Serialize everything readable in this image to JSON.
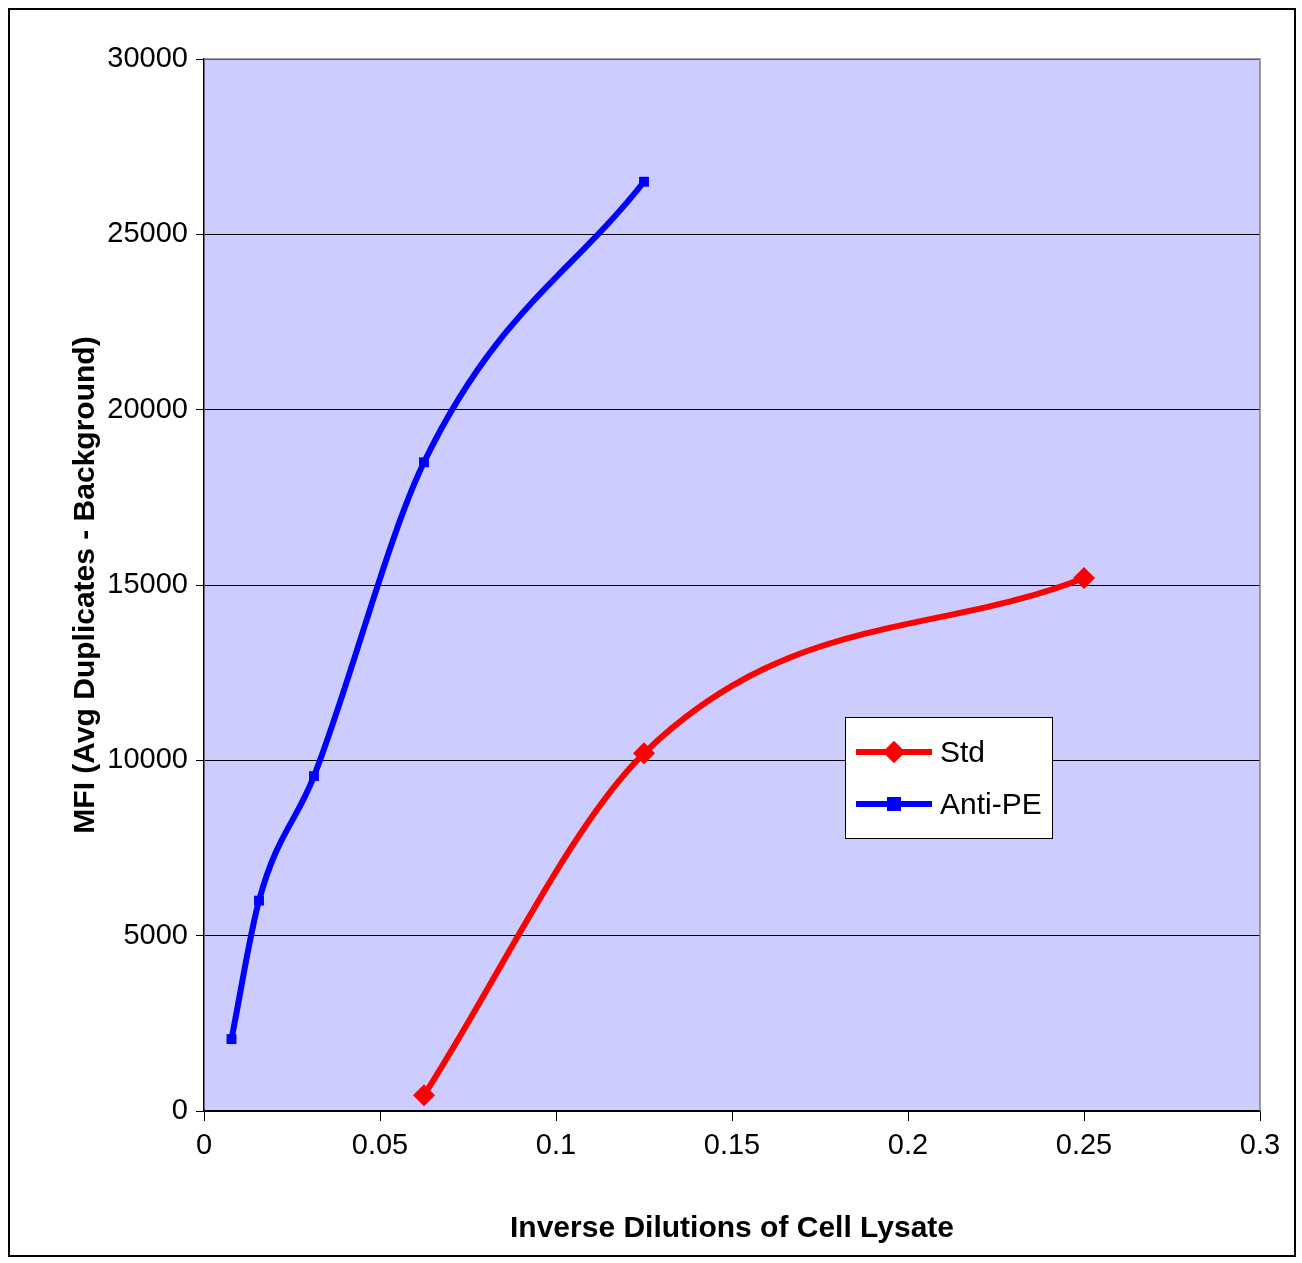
{
  "chart_data": {
    "type": "line",
    "xlabel": "Inverse Dilutions of Cell Lysate",
    "ylabel": "MFI (Avg Duplicates - Background)",
    "xlim": [
      0,
      0.3
    ],
    "xticks": [
      0,
      0.05,
      0.1,
      0.15,
      0.2,
      0.25,
      0.3
    ],
    "ylim": [
      0,
      30000
    ],
    "yticks": [
      0,
      5000,
      10000,
      15000,
      20000,
      25000,
      30000
    ],
    "grid": "y",
    "legend": "right",
    "series": [
      {
        "name": "Std",
        "color": "#ff0000",
        "marker": "diamond",
        "x": [
          0.0625,
          0.125,
          0.25
        ],
        "values": [
          450,
          10200,
          15200
        ]
      },
      {
        "name": "Anti-PE",
        "color": "#0000ff",
        "marker": "square",
        "x": [
          0.0078125,
          0.015625,
          0.03125,
          0.0625,
          0.125
        ],
        "values": [
          2050,
          6000,
          9550,
          18500,
          26500
        ]
      }
    ]
  }
}
